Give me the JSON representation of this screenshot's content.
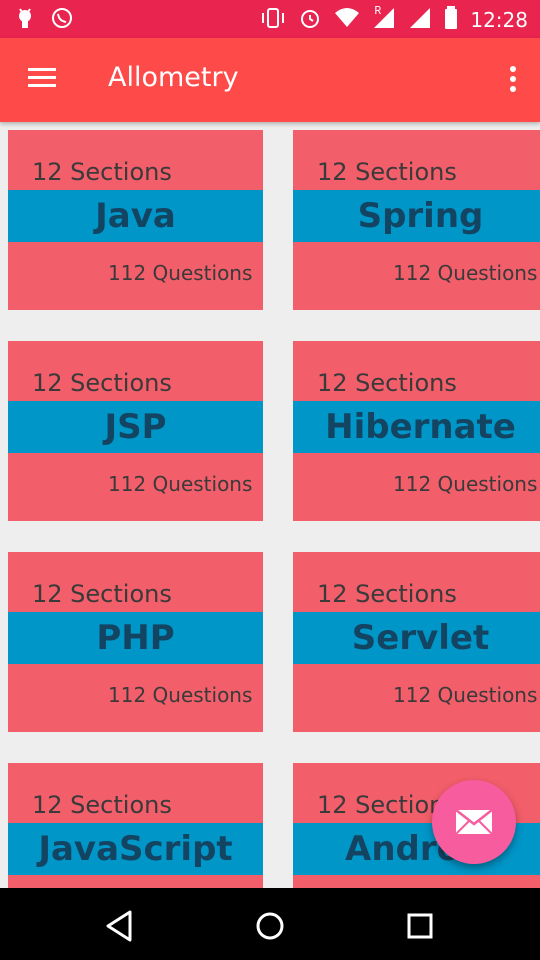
{
  "status_bar": {
    "time": "12:28",
    "carrier_mark": "R"
  },
  "app_bar": {
    "title": "Allometry",
    "menu_icon": "menu-icon",
    "overflow_icon": "more-vert-icon"
  },
  "cards": [
    {
      "sections": "12 Sections",
      "name": "Java",
      "questions": "112 Questions"
    },
    {
      "sections": "12 Sections",
      "name": "Spring",
      "questions": "112 Questions"
    },
    {
      "sections": "12 Sections",
      "name": "JSP",
      "questions": "112 Questions"
    },
    {
      "sections": "12 Sections",
      "name": "Hibernate",
      "questions": "112 Questions"
    },
    {
      "sections": "12 Sections",
      "name": "PHP",
      "questions": "112 Questions"
    },
    {
      "sections": "12 Sections",
      "name": "Servlet",
      "questions": "112 Questions"
    },
    {
      "sections": "12 Sections",
      "name": "JavaScript",
      "questions": ""
    },
    {
      "sections": "12 Sections",
      "name": "Android",
      "questions": ""
    }
  ],
  "fab": {
    "icon": "mail-icon"
  },
  "colors": {
    "status_bar": "#E8244F",
    "app_bar": "#FF4A4A",
    "card": "#F25E6A",
    "band": "#0096C8",
    "band_text": "#134563",
    "fab": "#F75C9E"
  }
}
